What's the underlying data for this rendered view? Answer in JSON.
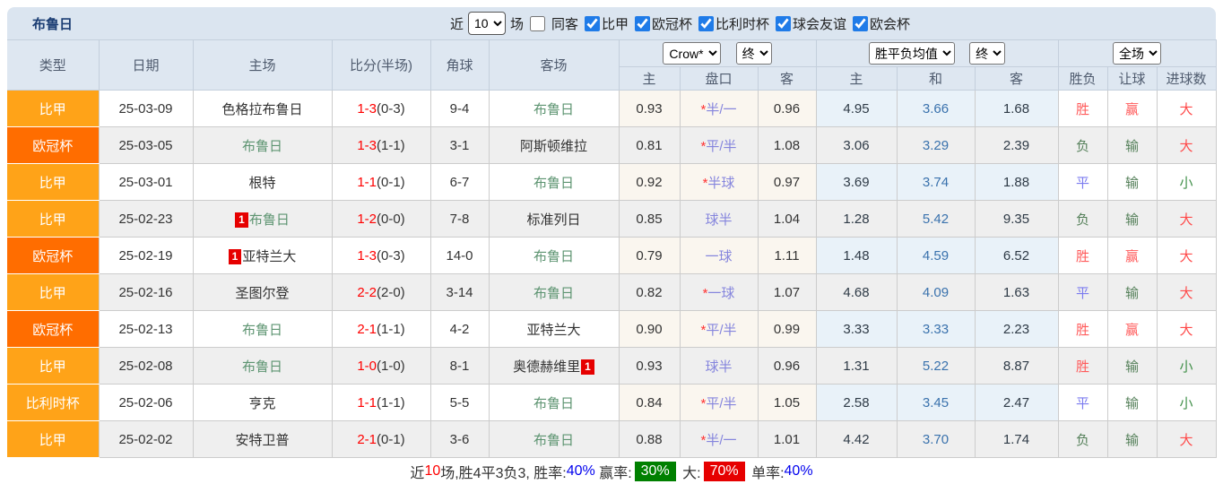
{
  "header": {
    "title": "布鲁日",
    "recent_label": "近",
    "recent_count": "10",
    "games_label": "场",
    "same_away_label": "同客",
    "same_away_checked": false,
    "leagues": [
      {
        "label": "比甲",
        "checked": true
      },
      {
        "label": "欧冠杯",
        "checked": true
      },
      {
        "label": "比利时杯",
        "checked": true
      },
      {
        "label": "球会友谊",
        "checked": true
      },
      {
        "label": "欧会杯",
        "checked": true
      }
    ]
  },
  "table": {
    "columns": {
      "type": "类型",
      "date": "日期",
      "home": "主场",
      "score": "比分(半场)",
      "corner": "角球",
      "away": "客场",
      "odds_home": "主",
      "odds_handicap": "盘口",
      "odds_away": "客",
      "avg_home": "主",
      "avg_draw": "和",
      "avg_away": "客",
      "result": "胜负",
      "handicap_result": "让球",
      "goals": "进球数"
    },
    "selects": {
      "bookmaker": "Crow*",
      "odds_time": "终",
      "avg_type": "胜平负均值",
      "avg_time": "终",
      "scope": "全场"
    },
    "type_colors": {
      "比甲": "#FFA318",
      "欧冠杯": "#FF6D00",
      "比利时杯": "#FFA318"
    },
    "result_colors": {
      "胜": "#FF5B5B",
      "平": "#7B7BEF",
      "负": "#55805A",
      "赢": "#FF5B5B",
      "输": "#55805A",
      "大": "#FF4A4A",
      "小": "#42904A"
    },
    "rows": [
      {
        "type": "比甲",
        "date": "25-03-09",
        "home": "色格拉布鲁日",
        "home_team": false,
        "home_badge": null,
        "score": "1-3",
        "half": "(0-3)",
        "corner": "9-4",
        "away": "布鲁日",
        "away_team": true,
        "away_badge": null,
        "o_home": "0.93",
        "handicap": "*半/一",
        "o_away": "0.96",
        "a_home": "4.95",
        "a_draw": "3.66",
        "a_away": "1.68",
        "result": "胜",
        "let": "赢",
        "goal": "大"
      },
      {
        "type": "欧冠杯",
        "date": "25-03-05",
        "home": "布鲁日",
        "home_team": true,
        "home_badge": null,
        "score": "1-3",
        "half": "(1-1)",
        "corner": "3-1",
        "away": "阿斯顿维拉",
        "away_team": false,
        "away_badge": null,
        "o_home": "0.81",
        "handicap": "*平/半",
        "o_away": "1.08",
        "a_home": "3.06",
        "a_draw": "3.29",
        "a_away": "2.39",
        "result": "负",
        "let": "输",
        "goal": "大"
      },
      {
        "type": "比甲",
        "date": "25-03-01",
        "home": "根特",
        "home_team": false,
        "home_badge": null,
        "score": "1-1",
        "half": "(0-1)",
        "corner": "6-7",
        "away": "布鲁日",
        "away_team": true,
        "away_badge": null,
        "o_home": "0.92",
        "handicap": "*半球",
        "o_away": "0.97",
        "a_home": "3.69",
        "a_draw": "3.74",
        "a_away": "1.88",
        "result": "平",
        "let": "输",
        "goal": "小"
      },
      {
        "type": "比甲",
        "date": "25-02-23",
        "home": "布鲁日",
        "home_team": true,
        "home_badge": "1",
        "score": "1-2",
        "half": "(0-0)",
        "corner": "7-8",
        "away": "标准列日",
        "away_team": false,
        "away_badge": null,
        "o_home": "0.85",
        "handicap": "球半",
        "o_away": "1.04",
        "a_home": "1.28",
        "a_draw": "5.42",
        "a_away": "9.35",
        "result": "负",
        "let": "输",
        "goal": "大"
      },
      {
        "type": "欧冠杯",
        "date": "25-02-19",
        "home": "亚特兰大",
        "home_team": false,
        "home_badge": "1",
        "score": "1-3",
        "half": "(0-3)",
        "corner": "14-0",
        "away": "布鲁日",
        "away_team": true,
        "away_badge": null,
        "o_home": "0.79",
        "handicap": "一球",
        "o_away": "1.11",
        "a_home": "1.48",
        "a_draw": "4.59",
        "a_away": "6.52",
        "result": "胜",
        "let": "赢",
        "goal": "大"
      },
      {
        "type": "比甲",
        "date": "25-02-16",
        "home": "圣图尔登",
        "home_team": false,
        "home_badge": null,
        "score": "2-2",
        "half": "(2-0)",
        "corner": "3-14",
        "away": "布鲁日",
        "away_team": true,
        "away_badge": null,
        "o_home": "0.82",
        "handicap": "*一球",
        "o_away": "1.07",
        "a_home": "4.68",
        "a_draw": "4.09",
        "a_away": "1.63",
        "result": "平",
        "let": "输",
        "goal": "大"
      },
      {
        "type": "欧冠杯",
        "date": "25-02-13",
        "home": "布鲁日",
        "home_team": true,
        "home_badge": null,
        "score": "2-1",
        "half": "(1-1)",
        "corner": "4-2",
        "away": "亚特兰大",
        "away_team": false,
        "away_badge": null,
        "o_home": "0.90",
        "handicap": "*平/半",
        "o_away": "0.99",
        "a_home": "3.33",
        "a_draw": "3.33",
        "a_away": "2.23",
        "result": "胜",
        "let": "赢",
        "goal": "大"
      },
      {
        "type": "比甲",
        "date": "25-02-08",
        "home": "布鲁日",
        "home_team": true,
        "home_badge": null,
        "score": "1-0",
        "half": "(1-0)",
        "corner": "8-1",
        "away": "奥德赫维里",
        "away_team": false,
        "away_badge": "1",
        "o_home": "0.93",
        "handicap": "球半",
        "o_away": "0.96",
        "a_home": "1.31",
        "a_draw": "5.22",
        "a_away": "8.87",
        "result": "胜",
        "let": "输",
        "goal": "小"
      },
      {
        "type": "比利时杯",
        "date": "25-02-06",
        "home": "亨克",
        "home_team": false,
        "home_badge": null,
        "score": "1-1",
        "half": "(1-1)",
        "corner": "5-5",
        "away": "布鲁日",
        "away_team": true,
        "away_badge": null,
        "o_home": "0.84",
        "handicap": "*平/半",
        "o_away": "1.05",
        "a_home": "2.58",
        "a_draw": "3.45",
        "a_away": "2.47",
        "result": "平",
        "let": "输",
        "goal": "小"
      },
      {
        "type": "比甲",
        "date": "25-02-02",
        "home": "安特卫普",
        "home_team": false,
        "home_badge": null,
        "score": "2-1",
        "half": "(0-1)",
        "corner": "3-6",
        "away": "布鲁日",
        "away_team": true,
        "away_badge": null,
        "o_home": "0.88",
        "handicap": "*半/一",
        "o_away": "1.01",
        "a_home": "4.42",
        "a_draw": "3.70",
        "a_away": "1.74",
        "result": "负",
        "let": "输",
        "goal": "大"
      }
    ]
  },
  "footer": {
    "parts": [
      {
        "text": "近",
        "style": "plain"
      },
      {
        "text": "10",
        "style": "red"
      },
      {
        "text": "场,胜4平3负3, 胜率:",
        "style": "plain"
      },
      {
        "text": "40%",
        "style": "blue"
      },
      {
        "text": " 赢率:",
        "style": "plain"
      },
      {
        "text": "30%",
        "style": "badge-green"
      },
      {
        "text": " 大:",
        "style": "plain"
      },
      {
        "text": "70%",
        "style": "badge-red"
      },
      {
        "text": " 单率:",
        "style": "plain"
      },
      {
        "text": "40%",
        "style": "blue"
      }
    ]
  },
  "colors": {
    "topbar_bg": "#dbe5f0",
    "header_bg": "#dee7f1",
    "title_text": "#1c3e74",
    "league_orange": "#FFA318",
    "league_deep_orange": "#FF6D00",
    "team_green": "#5d9471",
    "score_red": "#ff0000",
    "handicap_violet": "#8585dd",
    "avg_draw_blue": "#3a72ad",
    "odds_bg_cream": "#faf6ef",
    "avg_bg_blue": "#e9f2f9",
    "row_alt_bg": "#efefef",
    "checkbox_blue": "#1f7be8",
    "badge_red": "#e60000",
    "footer_green_bg": "#008000",
    "footer_red_bg": "#e60000",
    "footer_blue": "#0000ee"
  }
}
